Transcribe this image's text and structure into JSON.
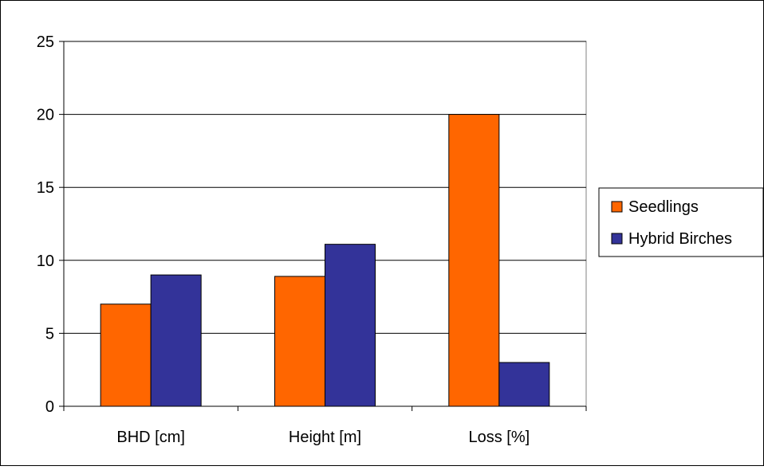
{
  "chart_data": {
    "type": "bar",
    "categories": [
      "BHD [cm]",
      "Height [m]",
      "Loss [%]"
    ],
    "series": [
      {
        "name": "Seedlings",
        "values": [
          7.0,
          8.9,
          20.0
        ],
        "color": "#ff6600"
      },
      {
        "name": "Hybrid Birches",
        "values": [
          9.0,
          11.1,
          3.0
        ],
        "color": "#333399"
      }
    ],
    "yticks": [
      "0",
      "5",
      "10",
      "15",
      "20",
      "25"
    ],
    "ylim": [
      0,
      25
    ],
    "grid": true,
    "legend_position": "right",
    "border_color": "#000000"
  }
}
